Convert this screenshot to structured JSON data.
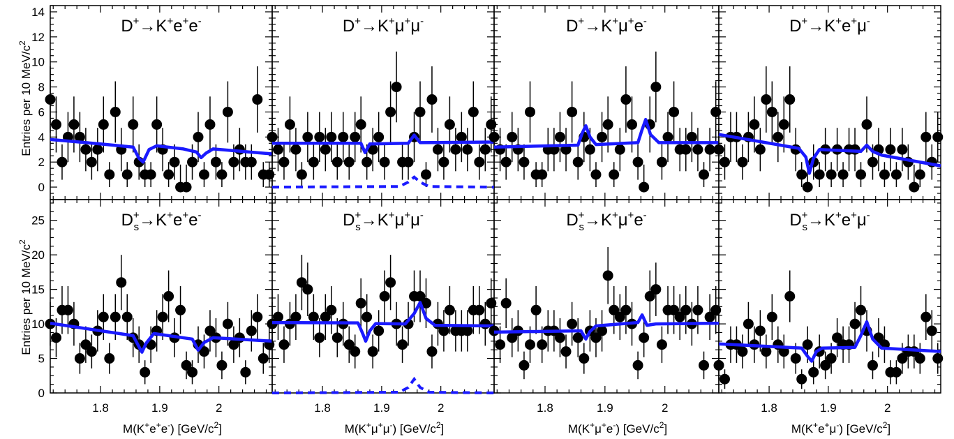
{
  "chart_data": {
    "type": "scatter",
    "ylabel": "Entries per 10 MeV/c²",
    "xlim": [
      1.715,
      2.09
    ],
    "x_ticks": [
      1.8,
      1.9,
      2.0
    ],
    "x_tick_labels": [
      "1.8",
      "1.9",
      "2"
    ],
    "row_ylims": [
      [
        -1,
        14.5
      ],
      [
        0,
        28
      ]
    ],
    "row_yticks": [
      [
        0,
        2,
        4,
        6,
        8,
        10,
        12,
        14
      ],
      [
        0,
        5,
        10,
        15,
        20,
        25
      ]
    ],
    "xlabels": [
      [
        "M(K",
        "+",
        "e",
        "+",
        "e",
        "-",
        ") [GeV/c",
        "2",
        "]"
      ],
      [
        "M(K",
        "+",
        "μ",
        "+",
        "μ",
        "-",
        ") [GeV/c",
        "2",
        "]"
      ],
      [
        "M(K",
        "+",
        "μ",
        "+",
        "e",
        "-",
        ") [GeV/c",
        "2",
        "]"
      ],
      [
        "M(K",
        "+",
        "e",
        "+",
        "μ",
        "-",
        ") [GeV/c",
        "2",
        "]"
      ]
    ],
    "panels": [
      {
        "row": 0,
        "col": 0,
        "title": [
          "D",
          "+",
          "",
          "→K",
          "+",
          "e",
          "+",
          "e",
          "-"
        ],
        "x": [
          1.715,
          1.725,
          1.735,
          1.745,
          1.755,
          1.765,
          1.775,
          1.785,
          1.795,
          1.805,
          1.815,
          1.825,
          1.835,
          1.845,
          1.855,
          1.865,
          1.875,
          1.885,
          1.895,
          1.905,
          1.915,
          1.925,
          1.935,
          1.945,
          1.955,
          1.965,
          1.975,
          1.985,
          1.995,
          2.005,
          2.015,
          2.025,
          2.035,
          2.045,
          2.055,
          2.065,
          2.075,
          2.085
        ],
        "y": [
          7,
          5,
          2,
          4,
          5,
          4,
          3,
          2,
          3,
          5,
          1,
          6,
          3,
          1,
          5,
          2,
          1,
          1,
          5,
          3,
          1,
          2,
          0,
          0,
          2,
          4,
          1,
          5,
          2,
          1,
          6,
          2,
          3,
          2,
          2,
          7,
          1,
          1
        ],
        "fit": [
          [
            1.715,
            3.8
          ],
          [
            1.8,
            3.45
          ],
          [
            1.855,
            3.2
          ],
          [
            1.865,
            2.3
          ],
          [
            1.872,
            2.0
          ],
          [
            1.882,
            3.0
          ],
          [
            1.895,
            3.3
          ],
          [
            1.94,
            3.05
          ],
          [
            1.962,
            2.8
          ],
          [
            1.97,
            2.35
          ],
          [
            1.978,
            2.7
          ],
          [
            1.99,
            3.05
          ],
          [
            2.09,
            2.65
          ]
        ]
      },
      {
        "row": 0,
        "col": 1,
        "title": [
          "D",
          "+",
          "",
          "→K",
          "+",
          "μ",
          "+",
          "μ",
          "-"
        ],
        "x": [
          1.715,
          1.725,
          1.735,
          1.745,
          1.755,
          1.765,
          1.775,
          1.785,
          1.795,
          1.805,
          1.815,
          1.825,
          1.835,
          1.845,
          1.855,
          1.865,
          1.875,
          1.885,
          1.895,
          1.905,
          1.915,
          1.925,
          1.935,
          1.945,
          1.955,
          1.965,
          1.975,
          1.985,
          1.995,
          2.005,
          2.015,
          2.025,
          2.035,
          2.045,
          2.055,
          2.065,
          2.075,
          2.085
        ],
        "y": [
          4,
          3,
          2,
          5,
          3,
          1,
          4,
          2,
          4,
          3,
          4,
          2,
          4,
          2,
          4,
          5,
          2,
          3,
          4,
          2,
          6,
          8,
          2,
          2,
          4,
          6,
          1,
          7,
          3,
          2,
          5,
          3,
          4,
          3,
          6,
          2,
          3,
          5
        ],
        "fit": [
          [
            1.715,
            3.5
          ],
          [
            1.865,
            3.5
          ],
          [
            1.872,
            2.75
          ],
          [
            1.88,
            3.45
          ],
          [
            1.945,
            3.5
          ],
          [
            1.955,
            4.15
          ],
          [
            1.965,
            3.55
          ],
          [
            2.09,
            3.6
          ]
        ],
        "signal": [
          [
            1.715,
            0
          ],
          [
            1.93,
            0.05
          ],
          [
            1.945,
            0.4
          ],
          [
            1.955,
            0.8
          ],
          [
            1.965,
            0.4
          ],
          [
            1.98,
            0.05
          ],
          [
            2.09,
            0
          ]
        ]
      },
      {
        "row": 0,
        "col": 2,
        "title": [
          "D",
          "+",
          "",
          "→K",
          "+",
          "μ",
          "+",
          "e",
          "-"
        ],
        "x": [
          1.715,
          1.725,
          1.735,
          1.745,
          1.755,
          1.765,
          1.775,
          1.785,
          1.795,
          1.805,
          1.815,
          1.825,
          1.835,
          1.845,
          1.855,
          1.865,
          1.875,
          1.885,
          1.895,
          1.905,
          1.915,
          1.925,
          1.935,
          1.945,
          1.955,
          1.965,
          1.975,
          1.985,
          1.995,
          2.005,
          2.015,
          2.025,
          2.035,
          2.045,
          2.055,
          2.065,
          2.075,
          2.085
        ],
        "y": [
          4,
          3,
          2,
          4,
          3,
          2,
          6,
          1,
          1,
          3,
          3,
          4,
          3,
          6,
          2,
          4,
          3,
          1,
          4,
          5,
          1,
          3,
          7,
          5,
          2,
          0,
          5,
          8,
          2,
          4,
          6,
          3,
          3,
          4,
          3,
          1,
          3,
          6
        ],
        "fit": [
          [
            1.715,
            3.2
          ],
          [
            1.855,
            3.35
          ],
          [
            1.862,
            4.3
          ],
          [
            1.868,
            4.9
          ],
          [
            1.875,
            4.0
          ],
          [
            1.885,
            3.4
          ],
          [
            1.955,
            3.55
          ],
          [
            1.962,
            4.6
          ],
          [
            1.968,
            5.4
          ],
          [
            1.976,
            4.2
          ],
          [
            1.99,
            3.55
          ],
          [
            2.09,
            3.55
          ]
        ]
      },
      {
        "row": 0,
        "col": 3,
        "title": [
          "D",
          "+",
          "",
          "→K",
          "+",
          "e",
          "+",
          "μ",
          "-"
        ],
        "x": [
          1.715,
          1.725,
          1.735,
          1.745,
          1.755,
          1.765,
          1.775,
          1.785,
          1.795,
          1.805,
          1.815,
          1.825,
          1.835,
          1.845,
          1.855,
          1.865,
          1.875,
          1.885,
          1.895,
          1.905,
          1.915,
          1.925,
          1.935,
          1.945,
          1.955,
          1.965,
          1.975,
          1.985,
          1.995,
          2.005,
          2.015,
          2.025,
          2.035,
          2.045,
          2.055,
          2.065,
          2.075,
          2.085
        ],
        "y": [
          3,
          2,
          4,
          4,
          2,
          4,
          5,
          3,
          7,
          6,
          4,
          5,
          7,
          3,
          1,
          0,
          2,
          1,
          3,
          1,
          3,
          1,
          3,
          3,
          1,
          5,
          2,
          3,
          1,
          3,
          1,
          3,
          2,
          0,
          1,
          4,
          2,
          4
        ],
        "fit": [
          [
            1.715,
            4.2
          ],
          [
            1.85,
            3.1
          ],
          [
            1.862,
            2.4
          ],
          [
            1.868,
            1.1
          ],
          [
            1.875,
            2.3
          ],
          [
            1.885,
            3.0
          ],
          [
            1.955,
            2.85
          ],
          [
            1.965,
            3.35
          ],
          [
            1.975,
            2.85
          ],
          [
            1.99,
            2.55
          ],
          [
            2.09,
            1.7
          ]
        ]
      },
      {
        "row": 1,
        "col": 0,
        "title": [
          "D",
          "+",
          "s",
          "→K",
          "+",
          "e",
          "+",
          "e",
          "-"
        ],
        "x": [
          1.715,
          1.725,
          1.735,
          1.745,
          1.755,
          1.765,
          1.775,
          1.785,
          1.795,
          1.805,
          1.815,
          1.825,
          1.835,
          1.845,
          1.855,
          1.865,
          1.875,
          1.885,
          1.895,
          1.905,
          1.915,
          1.925,
          1.935,
          1.945,
          1.955,
          1.965,
          1.975,
          1.985,
          1.995,
          2.005,
          2.015,
          2.025,
          2.035,
          2.045,
          2.055,
          2.065,
          2.075,
          2.085
        ],
        "y": [
          10,
          8,
          12,
          12,
          10,
          5,
          7,
          6,
          9,
          11,
          5,
          11,
          16,
          11,
          8,
          7,
          3,
          7,
          9,
          11,
          14,
          8,
          12,
          4,
          3,
          7,
          6,
          9,
          8,
          4,
          10,
          7,
          8,
          3,
          9,
          11,
          5,
          7
        ],
        "fit": [
          [
            1.715,
            10.1
          ],
          [
            1.855,
            8.3
          ],
          [
            1.863,
            7.0
          ],
          [
            1.87,
            5.9
          ],
          [
            1.877,
            7.2
          ],
          [
            1.89,
            8.6
          ],
          [
            1.955,
            7.8
          ],
          [
            1.965,
            6.2
          ],
          [
            1.975,
            7.3
          ],
          [
            1.99,
            8.0
          ],
          [
            2.09,
            7.5
          ]
        ]
      },
      {
        "row": 1,
        "col": 1,
        "title": [
          "D",
          "+",
          "s",
          "→K",
          "+",
          "μ",
          "+",
          "μ",
          "-"
        ],
        "x": [
          1.715,
          1.725,
          1.735,
          1.745,
          1.755,
          1.765,
          1.775,
          1.785,
          1.795,
          1.805,
          1.815,
          1.825,
          1.835,
          1.845,
          1.855,
          1.865,
          1.875,
          1.885,
          1.895,
          1.905,
          1.915,
          1.925,
          1.935,
          1.945,
          1.955,
          1.965,
          1.975,
          1.985,
          1.995,
          2.005,
          2.015,
          2.025,
          2.035,
          2.045,
          2.055,
          2.065,
          2.075,
          2.085
        ],
        "y": [
          10,
          11,
          7,
          10,
          11,
          16,
          15,
          11,
          8,
          11,
          12,
          8,
          10,
          7,
          6,
          13,
          11,
          6,
          9,
          14,
          16,
          10,
          7,
          10,
          14,
          14,
          13,
          6,
          10,
          9,
          12,
          9,
          9,
          9,
          12,
          12,
          10,
          13
        ],
        "fit": [
          [
            1.715,
            10.2
          ],
          [
            1.86,
            10.15
          ],
          [
            1.868,
            8.6
          ],
          [
            1.873,
            7.5
          ],
          [
            1.88,
            9.0
          ],
          [
            1.89,
            10.05
          ],
          [
            1.94,
            10.0
          ],
          [
            1.955,
            11.5
          ],
          [
            1.965,
            13.1
          ],
          [
            1.975,
            10.8
          ],
          [
            1.99,
            9.8
          ],
          [
            2.09,
            9.7
          ]
        ],
        "signal": [
          [
            1.715,
            0
          ],
          [
            1.93,
            0.1
          ],
          [
            1.945,
            0.8
          ],
          [
            1.955,
            2.0
          ],
          [
            1.965,
            0.8
          ],
          [
            1.98,
            0.1
          ],
          [
            2.09,
            0
          ]
        ]
      },
      {
        "row": 1,
        "col": 2,
        "title": [
          "D",
          "+",
          "s",
          "→K",
          "+",
          "μ",
          "+",
          "e",
          "-"
        ],
        "x": [
          1.715,
          1.725,
          1.735,
          1.745,
          1.755,
          1.765,
          1.775,
          1.785,
          1.795,
          1.805,
          1.815,
          1.825,
          1.835,
          1.845,
          1.855,
          1.865,
          1.875,
          1.885,
          1.895,
          1.905,
          1.915,
          1.925,
          1.935,
          1.945,
          1.955,
          1.965,
          1.975,
          1.985,
          1.995,
          2.005,
          2.015,
          2.025,
          2.035,
          2.045,
          2.055,
          2.065,
          2.075,
          2.085
        ],
        "y": [
          9,
          7,
          13,
          8,
          9,
          4,
          7,
          12,
          7,
          9,
          9,
          8,
          6,
          10,
          8,
          5,
          9,
          8,
          9,
          17,
          12,
          11,
          12,
          10,
          4,
          8,
          14,
          15,
          7,
          12,
          12,
          11,
          12,
          10,
          12,
          4,
          11,
          12
        ],
        "fit": [
          [
            1.715,
            8.8
          ],
          [
            1.86,
            9.0
          ],
          [
            1.868,
            7.8
          ],
          [
            1.875,
            8.9
          ],
          [
            1.885,
            9.7
          ],
          [
            1.955,
            10.2
          ],
          [
            1.962,
            11.3
          ],
          [
            1.97,
            9.8
          ],
          [
            1.985,
            10.0
          ],
          [
            2.09,
            10.1
          ]
        ]
      },
      {
        "row": 1,
        "col": 3,
        "title": [
          "D",
          "+",
          "s",
          "→K",
          "+",
          "e",
          "+",
          "μ",
          "-"
        ],
        "x": [
          1.715,
          1.725,
          1.735,
          1.745,
          1.755,
          1.765,
          1.775,
          1.785,
          1.795,
          1.805,
          1.815,
          1.825,
          1.835,
          1.845,
          1.855,
          1.865,
          1.875,
          1.885,
          1.895,
          1.905,
          1.915,
          1.925,
          1.935,
          1.945,
          1.955,
          1.965,
          1.975,
          1.985,
          1.995,
          2.005,
          2.015,
          2.025,
          2.035,
          2.045,
          2.055,
          2.065,
          2.075,
          2.085
        ],
        "y": [
          4,
          2,
          7,
          7,
          6,
          10,
          7,
          9,
          6,
          11,
          7,
          6,
          14,
          5,
          2,
          7,
          3,
          6,
          4,
          5,
          8,
          7,
          7,
          10,
          12,
          9,
          4,
          8,
          7,
          3,
          3,
          5,
          6,
          6,
          5,
          11,
          9,
          5
        ],
        "fit": [
          [
            1.715,
            7.1
          ],
          [
            1.855,
            6.5
          ],
          [
            1.865,
            5.3
          ],
          [
            1.872,
            4.6
          ],
          [
            1.88,
            6.0
          ],
          [
            1.89,
            6.5
          ],
          [
            1.945,
            6.6
          ],
          [
            1.955,
            8.3
          ],
          [
            1.965,
            10.3
          ],
          [
            1.975,
            7.8
          ],
          [
            1.99,
            6.5
          ],
          [
            2.09,
            6.0
          ]
        ]
      }
    ]
  }
}
